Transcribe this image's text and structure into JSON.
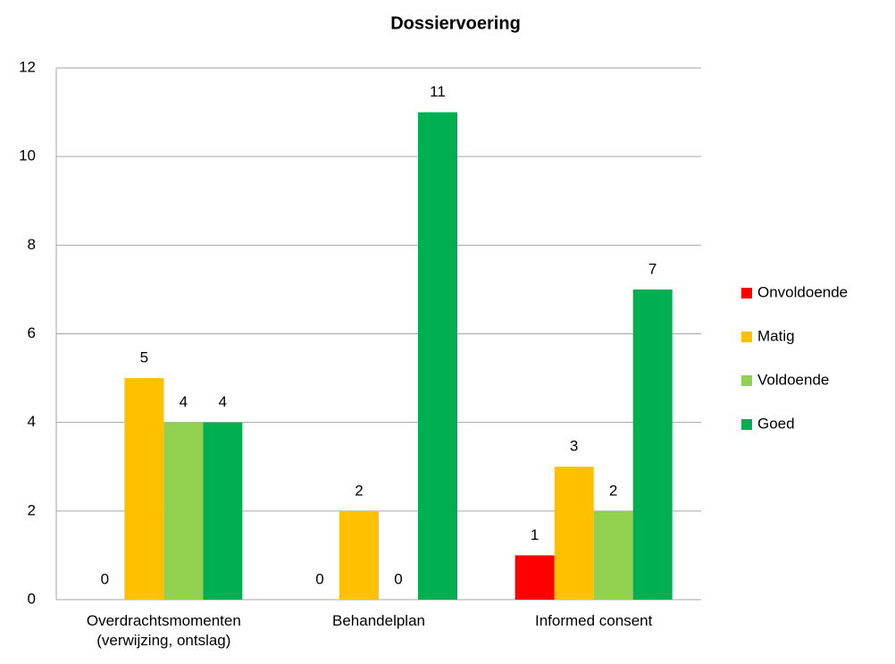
{
  "chart_data": {
    "type": "bar",
    "title": "Dossiervoering",
    "categories": [
      "Overdrachtsmomenten (verwijzing, ontslag)",
      "Behandelplan",
      "Informed consent"
    ],
    "series": [
      {
        "name": "Onvoldoende",
        "color": "#ff0000",
        "values": [
          0,
          0,
          1
        ]
      },
      {
        "name": "Matig",
        "color": "#ffc000",
        "values": [
          5,
          2,
          3
        ]
      },
      {
        "name": "Voldoende",
        "color": "#92d050",
        "values": [
          4,
          0,
          2
        ]
      },
      {
        "name": "Goed",
        "color": "#00b050",
        "values": [
          4,
          11,
          7
        ]
      }
    ],
    "ylim": [
      0,
      12
    ],
    "yticks": [
      0,
      2,
      4,
      6,
      8,
      10,
      12
    ],
    "grid": true,
    "legend": "right",
    "data_labels": true
  }
}
